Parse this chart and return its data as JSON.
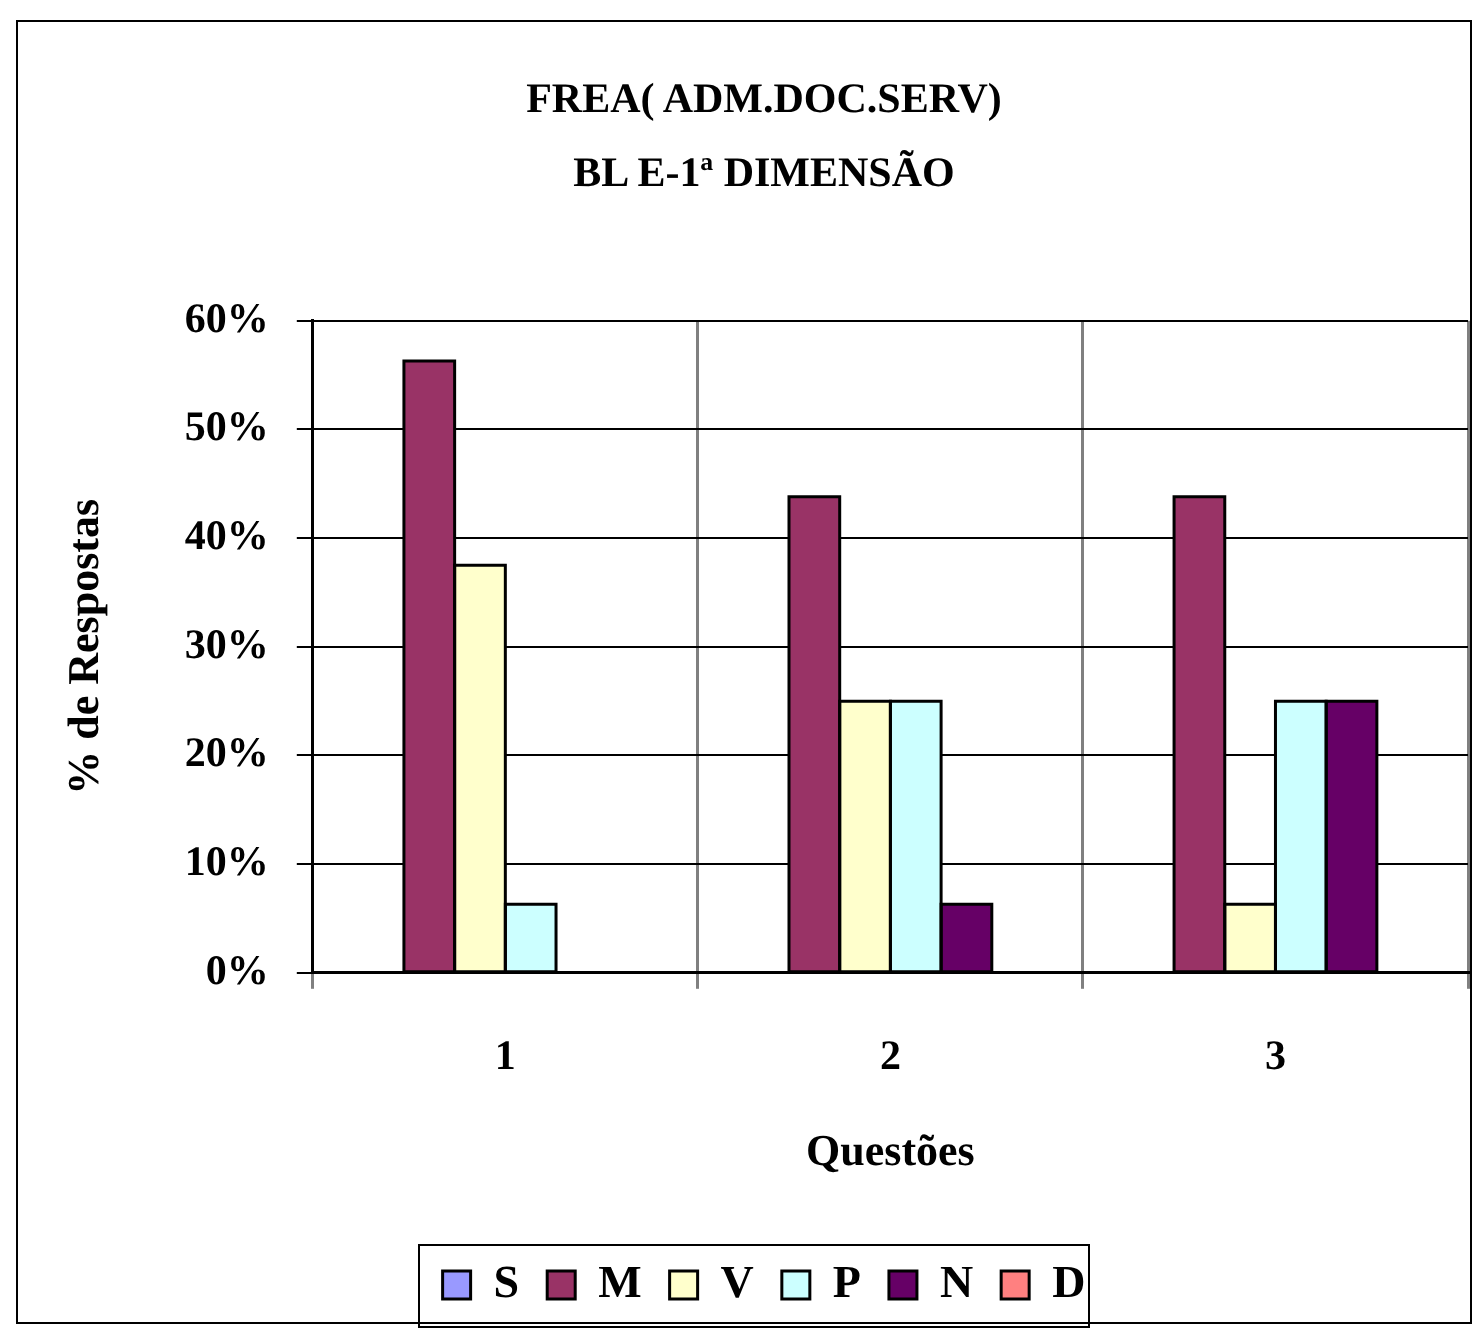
{
  "chart_data": {
    "type": "bar",
    "title": "FREA( ADM.DOC.SERV)",
    "subtitle": "BL E-1ª DIMENSÃO",
    "xlabel": "Questões",
    "ylabel": "% de Respostas",
    "categories": [
      "1",
      "2",
      "3"
    ],
    "series": [
      {
        "name": "S",
        "color": "#9999ff",
        "values": [
          0,
          0,
          0
        ]
      },
      {
        "name": "M",
        "color": "#993366",
        "values": [
          56.3,
          43.8,
          43.8
        ]
      },
      {
        "name": "V",
        "color": "#ffffcc",
        "values": [
          37.5,
          25,
          6.3
        ]
      },
      {
        "name": "P",
        "color": "#ccffff",
        "values": [
          6.3,
          25,
          25
        ]
      },
      {
        "name": "N",
        "color": "#660066",
        "values": [
          0,
          6.3,
          25
        ]
      },
      {
        "name": "D",
        "color": "#ff8080",
        "values": [
          0,
          0,
          0
        ]
      }
    ],
    "ylim": [
      0,
      60
    ],
    "yticks": [
      {
        "value": 0,
        "label": "0%"
      },
      {
        "value": 10,
        "label": "10%"
      },
      {
        "value": 20,
        "label": "20%"
      },
      {
        "value": 30,
        "label": "30%"
      },
      {
        "value": 40,
        "label": "40%"
      },
      {
        "value": 50,
        "label": "50%"
      },
      {
        "value": 60,
        "label": "60%"
      }
    ],
    "grid": true,
    "legend": "bottom"
  }
}
